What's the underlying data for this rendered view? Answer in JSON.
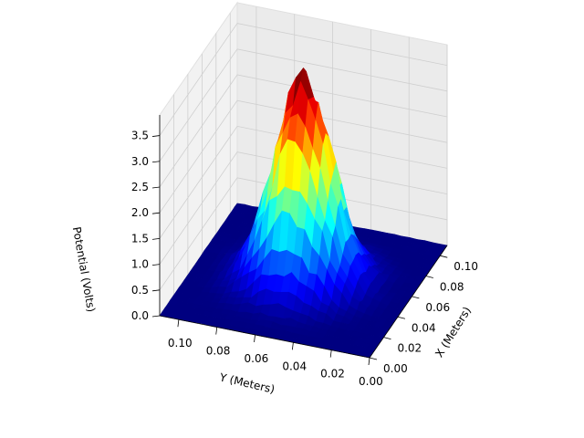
{
  "chart_data": {
    "type": "surface",
    "colormap": "jet",
    "title": "",
    "xlabel": "X (Meters)",
    "ylabel": "Y (Meters)",
    "zlabel": "Potential (Volts)",
    "xlim": [
      0.0,
      0.11
    ],
    "ylim": [
      0.0,
      0.11
    ],
    "zlim": [
      0.0,
      3.9
    ],
    "xticks": [
      "0.00",
      "0.02",
      "0.04",
      "0.06",
      "0.08",
      "0.10"
    ],
    "yticks": [
      "0.00",
      "0.02",
      "0.04",
      "0.06",
      "0.08",
      "0.10"
    ],
    "zticks": [
      "0.0",
      "0.5",
      "1.0",
      "1.5",
      "2.0",
      "2.5",
      "3.0",
      "3.5"
    ],
    "grid": true,
    "surface": {
      "peak_x": 0.055,
      "peak_y": 0.055,
      "peak_value": 3.9,
      "x_range": [
        0.0,
        0.11
      ],
      "y_range": [
        0.0,
        0.11
      ],
      "shape": "noisy peak centered in domain, decaying to 0 at edges"
    }
  }
}
